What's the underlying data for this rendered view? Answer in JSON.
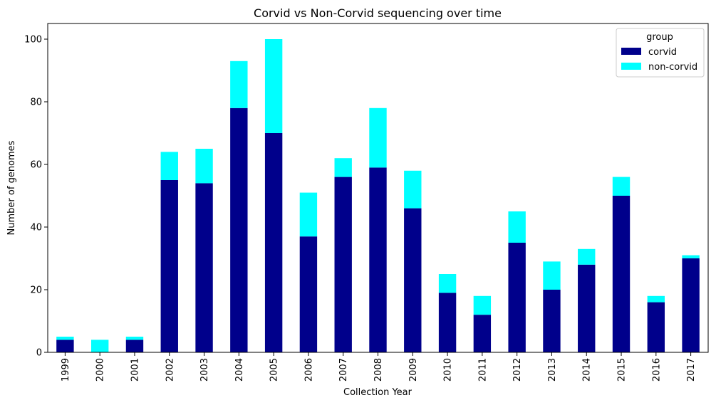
{
  "chart_data": {
    "type": "bar",
    "stacked": true,
    "title": "Corvid vs Non-Corvid sequencing over time",
    "xlabel": "Collection Year",
    "ylabel": "Number of genomes",
    "categories": [
      "1999",
      "2000",
      "2001",
      "2002",
      "2003",
      "2004",
      "2005",
      "2006",
      "2007",
      "2008",
      "2009",
      "2010",
      "2011",
      "2012",
      "2013",
      "2014",
      "2015",
      "2016",
      "2017"
    ],
    "series": [
      {
        "name": "corvid",
        "color": "#00008b",
        "values": [
          4,
          0,
          4,
          55,
          54,
          78,
          70,
          37,
          56,
          59,
          46,
          19,
          12,
          35,
          20,
          28,
          50,
          16,
          30
        ]
      },
      {
        "name": "non-corvid",
        "color": "#00ffff",
        "values": [
          1,
          4,
          1,
          9,
          11,
          15,
          30,
          14,
          6,
          19,
          12,
          6,
          6,
          10,
          9,
          5,
          6,
          2,
          1
        ]
      }
    ],
    "ylim": [
      0,
      105
    ],
    "yticks": [
      0,
      20,
      40,
      60,
      80,
      100
    ],
    "legend": {
      "title": "group",
      "placement": "top-right"
    },
    "grid": false
  }
}
